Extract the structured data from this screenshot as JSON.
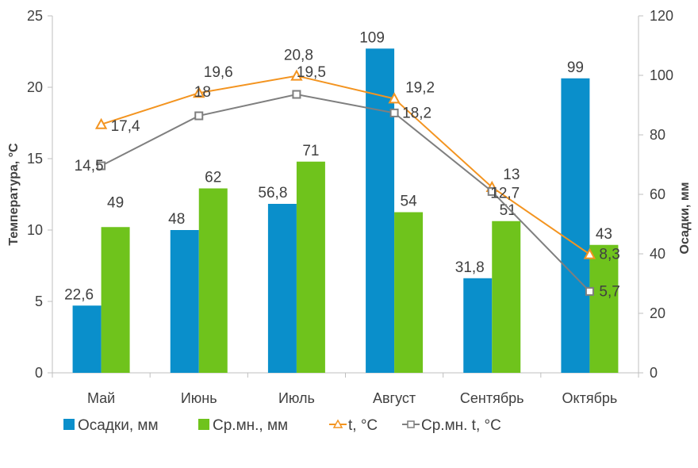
{
  "chart_data": {
    "type": "bar",
    "categories": [
      "Май",
      "Июнь",
      "Июль",
      "Август",
      "Сентябрь",
      "Октябрь"
    ],
    "bar_series": [
      {
        "name": "Осадки, мм",
        "color": "#0a8fcb",
        "values": [
          22.6,
          48,
          56.8,
          109,
          31.8,
          99
        ],
        "labels": [
          "22,6",
          "48",
          "56,8",
          "109",
          "31,8",
          "99"
        ]
      },
      {
        "name": "Ср.мн., мм",
        "color": "#6fc31c",
        "values": [
          49,
          62,
          71,
          54,
          51,
          43
        ],
        "labels": [
          "49",
          "62",
          "71",
          "54",
          "51",
          "43"
        ]
      }
    ],
    "line_series": [
      {
        "name": "t, °C",
        "color": "#f39420",
        "marker": "triangle",
        "values": [
          17.4,
          19.6,
          20.8,
          19.2,
          13,
          8.3
        ],
        "labels": [
          "17,4",
          "19,6",
          "20,8",
          "19,2",
          "13",
          "8,3"
        ]
      },
      {
        "name": "Ср.мн. t, °C",
        "color": "#7f7f7f",
        "marker": "square",
        "values": [
          14.5,
          18,
          19.5,
          18.2,
          12.7,
          5.7
        ],
        "labels": [
          "14,5",
          "18",
          "19,5",
          "18,2",
          "12,7",
          "5,7"
        ]
      }
    ],
    "y_left": {
      "label": "Температура, °С",
      "range": [
        0,
        25
      ],
      "ticks": [
        "0",
        "5",
        "10",
        "15",
        "20",
        "25"
      ]
    },
    "y_right": {
      "label": "Осадки, мм",
      "range": [
        0,
        120
      ],
      "ticks": [
        "0",
        "20",
        "40",
        "60",
        "80",
        "100",
        "120"
      ]
    },
    "legend_position": "bottom",
    "grid": false
  }
}
